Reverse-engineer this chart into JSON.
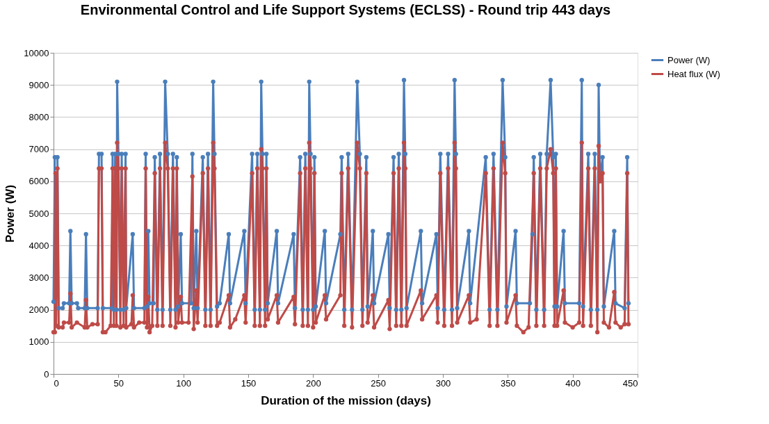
{
  "chart_data": {
    "type": "line",
    "title": "Environmental Control and Life Support Systems (ECLSS) - Round trip 443 days",
    "xlabel": "Duration of the mission (days)",
    "ylabel": "Power (W)",
    "xlim": [
      0,
      450
    ],
    "xticks": [
      0,
      50,
      100,
      150,
      200,
      250,
      300,
      350,
      400,
      450
    ],
    "ylim": [
      0,
      10000
    ],
    "yticks": [
      0,
      1000,
      2000,
      3000,
      4000,
      5000,
      6000,
      7000,
      8000,
      9000,
      10000
    ],
    "grid": "y",
    "legend": "right",
    "marker": "circle",
    "line_style": "solid",
    "series": [
      {
        "name": "Power (W)",
        "color": "#4a7ebb",
        "x": [
          0,
          1,
          3,
          4,
          7,
          8,
          12,
          13,
          14,
          18,
          19,
          24,
          25,
          26,
          34,
          35,
          37,
          38,
          45,
          45.5,
          46.5,
          47.5,
          48.5,
          49,
          50,
          51.5,
          52.5,
          54,
          55.5,
          56,
          61,
          62,
          70,
          71,
          72,
          73,
          74,
          77,
          78,
          80,
          82,
          84,
          86,
          88,
          90,
          92,
          94,
          95,
          96,
          98,
          99,
          106,
          107,
          108,
          110,
          111,
          115,
          117,
          119,
          121,
          123,
          124,
          126,
          128,
          135,
          136,
          147,
          148,
          153,
          155,
          157,
          159,
          160,
          161,
          163,
          164,
          165,
          172,
          173,
          185,
          186,
          190,
          192,
          194,
          196,
          197,
          198,
          200,
          201,
          202,
          209,
          210,
          221,
          222,
          224,
          227,
          230,
          234,
          236,
          238,
          241,
          242,
          246,
          247,
          258,
          259,
          262,
          264,
          266,
          268,
          270,
          271,
          272,
          283,
          284,
          295,
          296,
          298,
          301,
          304,
          307,
          309,
          310,
          311,
          320,
          321,
          333,
          336,
          339,
          342,
          346,
          348,
          349,
          356,
          357,
          367,
          369,
          370,
          372,
          375,
          378,
          380,
          383,
          385,
          386,
          387,
          388,
          393,
          394,
          405,
          407,
          408,
          412,
          414,
          417,
          419,
          420,
          421,
          423,
          424,
          432,
          433,
          440,
          442,
          443
        ],
        "values": [
          2250,
          6750,
          6750,
          2050,
          2050,
          2200,
          2200,
          4450,
          2200,
          2200,
          2050,
          2050,
          4350,
          2050,
          2050,
          6850,
          6850,
          2050,
          2050,
          6850,
          2000,
          6850,
          2000,
          9100,
          6850,
          2000,
          6850,
          2000,
          6850,
          2050,
          4350,
          2050,
          2050,
          6850,
          2100,
          4450,
          2200,
          2200,
          6750,
          2000,
          6850,
          2000,
          9100,
          6850,
          2000,
          6850,
          2000,
          6750,
          2100,
          4350,
          2200,
          2200,
          6850,
          2050,
          4450,
          2050,
          6750,
          2000,
          6850,
          2000,
          9100,
          6850,
          2100,
          2200,
          4350,
          2200,
          4450,
          2200,
          6850,
          2000,
          6850,
          2000,
          9100,
          6850,
          2000,
          6850,
          2200,
          4450,
          2200,
          4350,
          2050,
          6750,
          2000,
          6850,
          2000,
          9100,
          6850,
          2000,
          6750,
          2100,
          4450,
          2200,
          4350,
          6750,
          2000,
          6850,
          2000,
          9100,
          6850,
          2000,
          6750,
          2100,
          4450,
          2200,
          4350,
          2050,
          6750,
          2000,
          6850,
          2000,
          9150,
          6850,
          2050,
          4450,
          2200,
          4350,
          2050,
          6850,
          2000,
          6850,
          2000,
          9150,
          6850,
          2050,
          4450,
          2200,
          6750,
          2000,
          6850,
          2000,
          9150,
          6750,
          2100,
          4450,
          2200,
          2200,
          4350,
          6750,
          2000,
          6850,
          2000,
          6850,
          9150,
          6750,
          2100,
          6850,
          2100,
          4450,
          2200,
          2200,
          9150,
          2100,
          6850,
          2000,
          6850,
          2000,
          9000,
          6000,
          6750,
          2100,
          4450,
          2200,
          2050,
          6750,
          2200
        ]
      },
      {
        "name": "Heat flux (W)",
        "color": "#be4b48",
        "x": [
          0,
          1,
          1.5,
          2,
          3,
          4,
          7,
          8,
          12,
          13,
          14,
          18,
          24,
          25,
          26,
          30,
          34,
          35,
          37,
          38,
          40,
          44,
          45.5,
          46.5,
          47.5,
          48.5,
          49,
          50,
          51.5,
          52.5,
          54,
          55.5,
          56,
          60,
          61,
          62,
          66,
          70,
          71,
          72,
          73,
          74,
          76,
          78,
          80,
          82,
          84,
          86,
          88,
          90,
          92,
          94,
          95,
          96,
          98,
          99,
          104,
          107,
          108,
          110,
          111,
          115,
          117,
          119,
          121,
          123,
          124,
          126,
          128,
          135,
          136,
          140,
          147,
          148,
          153,
          155,
          157,
          159,
          160,
          161,
          163,
          164,
          165,
          172,
          173,
          185,
          186,
          190,
          192,
          194,
          196,
          197,
          198,
          200,
          201,
          202,
          209,
          210,
          221,
          222,
          224,
          227,
          230,
          234,
          236,
          238,
          241,
          242,
          246,
          247,
          258,
          259,
          262,
          264,
          266,
          268,
          270,
          271,
          272,
          283,
          284,
          295,
          296,
          298,
          301,
          304,
          307,
          309,
          310,
          311,
          320,
          321,
          326,
          333,
          336,
          339,
          342,
          346,
          348,
          349,
          356,
          357,
          362,
          366,
          370,
          372,
          375,
          378,
          380,
          383,
          385,
          386,
          387,
          388,
          393,
          394,
          400,
          405,
          407,
          408,
          412,
          414,
          417,
          419,
          420,
          421,
          423,
          424,
          428,
          432,
          433,
          437,
          440,
          442,
          443
        ],
        "values": [
          1300,
          1300,
          6250,
          1500,
          6400,
          1450,
          1450,
          1600,
          1600,
          2500,
          1450,
          1600,
          1450,
          2300,
          1450,
          1550,
          1550,
          6400,
          6400,
          1300,
          1300,
          1500,
          6400,
          1500,
          6400,
          1500,
          7200,
          6400,
          1450,
          6400,
          1500,
          6400,
          1450,
          1550,
          2450,
          1450,
          1600,
          1600,
          6400,
          1450,
          2400,
          1300,
          1500,
          6250,
          1500,
          6400,
          1500,
          7200,
          6400,
          1500,
          6400,
          1450,
          6400,
          1600,
          2400,
          1600,
          1600,
          6150,
          1400,
          2600,
          1600,
          6250,
          1500,
          6400,
          1500,
          7200,
          6400,
          1500,
          1600,
          2450,
          1450,
          1700,
          2450,
          1600,
          6250,
          1500,
          6400,
          1500,
          7000,
          6400,
          1500,
          6400,
          1700,
          2450,
          1600,
          2400,
          1550,
          6250,
          1500,
          6400,
          1500,
          7200,
          6400,
          1450,
          6250,
          1600,
          2450,
          1700,
          2450,
          6250,
          1500,
          6400,
          1450,
          7200,
          6400,
          1500,
          6250,
          1600,
          2450,
          1450,
          2300,
          1400,
          6250,
          1500,
          6400,
          1500,
          7200,
          6400,
          1500,
          2600,
          1700,
          2450,
          1600,
          6250,
          1500,
          6400,
          1500,
          7200,
          6400,
          1600,
          2450,
          1600,
          1700,
          6250,
          1500,
          6400,
          1500,
          7200,
          6250,
          1600,
          2450,
          1500,
          1300,
          1450,
          6250,
          1500,
          6400,
          1500,
          6400,
          7000,
          6250,
          1500,
          6400,
          1500,
          2600,
          1600,
          1450,
          1600,
          7200,
          1500,
          6400,
          1500,
          6400,
          1300,
          7100,
          6000,
          6250,
          1600,
          1450,
          2550,
          1600,
          1450,
          1550,
          6250,
          1550
        ]
      }
    ]
  }
}
